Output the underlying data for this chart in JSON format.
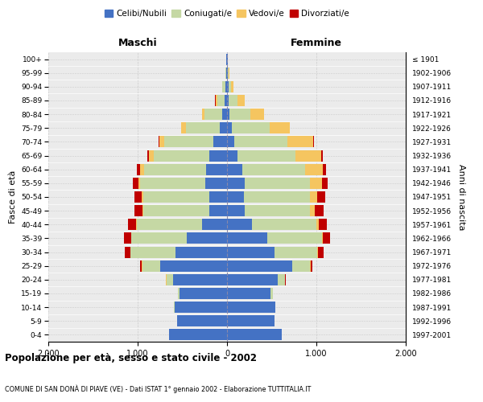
{
  "age_groups": [
    "0-4",
    "5-9",
    "10-14",
    "15-19",
    "20-24",
    "25-29",
    "30-34",
    "35-39",
    "40-44",
    "45-49",
    "50-54",
    "55-59",
    "60-64",
    "65-69",
    "70-74",
    "75-79",
    "80-84",
    "85-89",
    "90-94",
    "95-99",
    "100+"
  ],
  "birth_years": [
    "1997-2001",
    "1992-1996",
    "1987-1991",
    "1982-1986",
    "1977-1981",
    "1972-1976",
    "1967-1971",
    "1962-1966",
    "1957-1961",
    "1952-1956",
    "1947-1951",
    "1942-1946",
    "1937-1941",
    "1932-1936",
    "1927-1931",
    "1922-1926",
    "1917-1921",
    "1912-1916",
    "1907-1911",
    "1902-1906",
    "≤ 1901"
  ],
  "males": {
    "celibe": [
      650,
      560,
      590,
      530,
      600,
      750,
      580,
      450,
      280,
      200,
      200,
      240,
      230,
      200,
      150,
      80,
      50,
      30,
      20,
      10,
      5
    ],
    "coniugato": [
      1,
      2,
      5,
      20,
      80,
      200,
      500,
      620,
      730,
      740,
      740,
      730,
      700,
      620,
      550,
      380,
      200,
      80,
      30,
      8,
      2
    ],
    "vedovo": [
      0,
      0,
      0,
      0,
      1,
      2,
      2,
      3,
      5,
      10,
      15,
      20,
      40,
      50,
      60,
      50,
      30,
      20,
      5,
      2,
      0
    ],
    "divorziato": [
      0,
      0,
      0,
      1,
      5,
      20,
      60,
      80,
      90,
      90,
      80,
      60,
      40,
      20,
      8,
      5,
      3,
      2,
      0,
      0,
      0
    ]
  },
  "females": {
    "nubile": [
      610,
      530,
      540,
      490,
      570,
      730,
      530,
      450,
      280,
      200,
      190,
      200,
      170,
      120,
      80,
      50,
      30,
      20,
      15,
      10,
      5
    ],
    "coniugata": [
      1,
      2,
      5,
      20,
      80,
      200,
      480,
      610,
      720,
      730,
      740,
      730,
      700,
      650,
      600,
      430,
      230,
      100,
      30,
      8,
      2
    ],
    "vedova": [
      0,
      0,
      0,
      1,
      2,
      4,
      8,
      15,
      25,
      50,
      80,
      130,
      200,
      280,
      280,
      220,
      150,
      80,
      25,
      5,
      1
    ],
    "divorziata": [
      0,
      0,
      0,
      1,
      5,
      20,
      60,
      80,
      90,
      100,
      90,
      70,
      40,
      20,
      10,
      5,
      3,
      2,
      0,
      0,
      0
    ]
  },
  "colors": {
    "celibe": "#4472C4",
    "coniugato": "#c5d8a4",
    "vedovo": "#f5c560",
    "divorziato": "#c00000"
  },
  "xlim": 2000,
  "title": "Popolazione per età, sesso e stato civile - 2002",
  "subtitle": "COMUNE DI SAN DONÀ DI PIAVE (VE) - Dati ISTAT 1° gennaio 2002 - Elaborazione TUTTITALIA.IT",
  "ylabel_left": "Fasce di età",
  "ylabel_right": "Anni di nascita",
  "xlabel_maschi": "Maschi",
  "xlabel_femmine": "Femmine",
  "bg_color": "#f0f0f0",
  "grid_color": "#cccccc",
  "xtick_labels": [
    "2.000",
    "1.000",
    "0",
    "1.000",
    "2.000"
  ]
}
